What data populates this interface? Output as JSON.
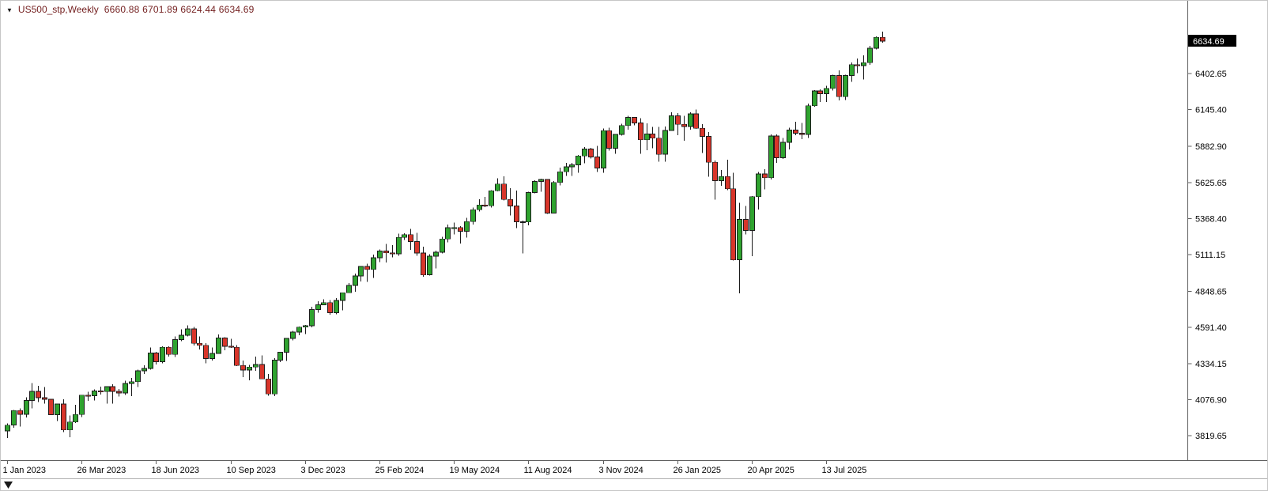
{
  "header": {
    "expand_icon": "▼",
    "symbol_timeframe": "US500_stp,Weekly",
    "ohlc": "6660.88 6701.89 6624.44 6634.69"
  },
  "price_scale": {
    "current_price_label": "6634.69",
    "labels": [
      "6402.65",
      "6145.40",
      "5882.90",
      "5625.65",
      "5368.40",
      "5111.15",
      "4848.65",
      "4591.40",
      "4334.15",
      "4076.90",
      "3819.65"
    ]
  },
  "time_scale": {
    "labels": [
      {
        "text": "1 Jan 2023",
        "week": 0
      },
      {
        "text": "26 Mar 2023",
        "week": 12
      },
      {
        "text": "18 Jun 2023",
        "week": 24
      },
      {
        "text": "10 Sep 2023",
        "week": 36
      },
      {
        "text": "3 Dec 2023",
        "week": 48
      },
      {
        "text": "25 Feb 2024",
        "week": 60
      },
      {
        "text": "19 May 2024",
        "week": 72
      },
      {
        "text": "11 Aug 2024",
        "week": 84
      },
      {
        "text": "3 Nov 2024",
        "week": 96
      },
      {
        "text": "26 Jan 2025",
        "week": 108
      },
      {
        "text": "20 Apr 2025",
        "week": 120
      },
      {
        "text": "13 Jul 2025",
        "week": 132
      }
    ]
  },
  "chart_data": {
    "type": "candlestick",
    "title": "US500_stp,Weekly",
    "symbol": "US500_stp",
    "timeframe": "Weekly",
    "grid": false,
    "legend_position": "none",
    "ylim": [
      3645,
      6922
    ],
    "x_unit": "week",
    "x_start_label": "1 Jan 2023",
    "current_bar": {
      "open": 6660.88,
      "high": 6701.89,
      "low": 6624.44,
      "close": 6634.69
    },
    "colors": {
      "up": "#2fa32f",
      "down": "#d8352a",
      "outline": "#1c1c1c",
      "background": "#ffffff",
      "axis_text": "#000000",
      "axis_line": "#5f5f5f",
      "title_text": "#731f1f",
      "badge_bg": "#000000",
      "badge_text": "#ffffff"
    },
    "candles": [
      [
        3853,
        3906,
        3802,
        3895
      ],
      [
        3895,
        4003,
        3877,
        3999
      ],
      [
        3999,
        4015,
        3885,
        3972
      ],
      [
        3972,
        4094,
        3949,
        4071
      ],
      [
        4071,
        4195,
        4015,
        4136
      ],
      [
        4136,
        4176,
        4060,
        4090
      ],
      [
        4090,
        4168,
        4047,
        4079
      ],
      [
        4079,
        4082,
        3969,
        3970
      ],
      [
        3970,
        4048,
        3925,
        4046
      ],
      [
        4046,
        4078,
        3846,
        3861
      ],
      [
        3861,
        3964,
        3808,
        3917
      ],
      [
        3917,
        4039,
        3909,
        3971
      ],
      [
        3971,
        4110,
        3951,
        4109
      ],
      [
        4109,
        4133,
        4069,
        4105
      ],
      [
        4105,
        4150,
        4072,
        4138
      ],
      [
        4138,
        4169,
        4113,
        4134
      ],
      [
        4134,
        4170,
        4049,
        4169
      ],
      [
        4169,
        4186,
        4048,
        4136
      ],
      [
        4136,
        4154,
        4098,
        4124
      ],
      [
        4124,
        4212,
        4110,
        4192
      ],
      [
        4192,
        4231,
        4103,
        4205
      ],
      [
        4205,
        4290,
        4166,
        4282
      ],
      [
        4282,
        4322,
        4261,
        4299
      ],
      [
        4299,
        4448,
        4292,
        4410
      ],
      [
        4410,
        4418,
        4328,
        4348
      ],
      [
        4348,
        4458,
        4336,
        4450
      ],
      [
        4450,
        4456,
        4385,
        4399
      ],
      [
        4399,
        4527,
        4380,
        4505
      ],
      [
        4505,
        4578,
        4495,
        4536
      ],
      [
        4536,
        4607,
        4528,
        4582
      ],
      [
        4582,
        4594,
        4464,
        4478
      ],
      [
        4478,
        4527,
        4436,
        4464
      ],
      [
        4464,
        4479,
        4335,
        4370
      ],
      [
        4370,
        4449,
        4356,
        4406
      ],
      [
        4406,
        4542,
        4403,
        4516
      ],
      [
        4516,
        4521,
        4430,
        4457
      ],
      [
        4457,
        4511,
        4447,
        4450
      ],
      [
        4450,
        4467,
        4316,
        4320
      ],
      [
        4320,
        4357,
        4238,
        4288
      ],
      [
        4288,
        4324,
        4216,
        4309
      ],
      [
        4309,
        4385,
        4283,
        4328
      ],
      [
        4328,
        4393,
        4223,
        4224
      ],
      [
        4224,
        4259,
        4104,
        4117
      ],
      [
        4117,
        4373,
        4103,
        4358
      ],
      [
        4358,
        4418,
        4343,
        4415
      ],
      [
        4415,
        4516,
        4353,
        4514
      ],
      [
        4514,
        4568,
        4499,
        4559
      ],
      [
        4559,
        4599,
        4537,
        4594
      ],
      [
        4594,
        4609,
        4546,
        4604
      ],
      [
        4604,
        4738,
        4593,
        4719
      ],
      [
        4719,
        4778,
        4697,
        4754
      ],
      [
        4754,
        4793,
        4751,
        4769
      ],
      [
        4769,
        4788,
        4682,
        4697
      ],
      [
        4697,
        4802,
        4687,
        4784
      ],
      [
        4784,
        4842,
        4714,
        4839
      ],
      [
        4839,
        4908,
        4837,
        4891
      ],
      [
        4891,
        4975,
        4845,
        4959
      ],
      [
        4959,
        5030,
        4920,
        5027
      ],
      [
        5027,
        5048,
        4918,
        5006
      ],
      [
        5006,
        5111,
        4946,
        5089
      ],
      [
        5089,
        5149,
        5057,
        5137
      ],
      [
        5137,
        5189,
        5056,
        5124
      ],
      [
        5124,
        5180,
        5092,
        5117
      ],
      [
        5117,
        5261,
        5104,
        5234
      ],
      [
        5234,
        5264,
        5216,
        5254
      ],
      [
        5254,
        5294,
        5146,
        5204
      ],
      [
        5204,
        5266,
        5103,
        5123
      ],
      [
        5123,
        5168,
        4953,
        4967
      ],
      [
        4967,
        5114,
        4963,
        5100
      ],
      [
        5100,
        5139,
        5013,
        5128
      ],
      [
        5128,
        5239,
        5120,
        5223
      ],
      [
        5223,
        5325,
        5200,
        5303
      ],
      [
        5303,
        5341,
        5256,
        5305
      ],
      [
        5305,
        5315,
        5191,
        5278
      ],
      [
        5278,
        5375,
        5234,
        5347
      ],
      [
        5347,
        5447,
        5327,
        5432
      ],
      [
        5432,
        5505,
        5420,
        5465
      ],
      [
        5465,
        5523,
        5451,
        5460
      ],
      [
        5460,
        5570,
        5446,
        5567
      ],
      [
        5567,
        5656,
        5562,
        5615
      ],
      [
        5615,
        5670,
        5497,
        5505
      ],
      [
        5505,
        5585,
        5390,
        5459
      ],
      [
        5459,
        5567,
        5300,
        5346
      ],
      [
        5346,
        5355,
        5119,
        5344
      ],
      [
        5344,
        5560,
        5319,
        5554
      ],
      [
        5554,
        5642,
        5550,
        5634
      ],
      [
        5634,
        5652,
        5560,
        5648
      ],
      [
        5648,
        5651,
        5402,
        5408
      ],
      [
        5408,
        5636,
        5404,
        5626
      ],
      [
        5626,
        5733,
        5604,
        5702
      ],
      [
        5702,
        5767,
        5674,
        5738
      ],
      [
        5738,
        5765,
        5674,
        5751
      ],
      [
        5751,
        5822,
        5696,
        5815
      ],
      [
        5815,
        5878,
        5762,
        5865
      ],
      [
        5865,
        5872,
        5797,
        5808
      ],
      [
        5808,
        5887,
        5702,
        5729
      ],
      [
        5729,
        6012,
        5696,
        5996
      ],
      [
        5996,
        6017,
        5853,
        5871
      ],
      [
        5871,
        5971,
        5832,
        5969
      ],
      [
        5969,
        6044,
        5961,
        6032
      ],
      [
        6032,
        6100,
        6003,
        6090
      ],
      [
        6090,
        6092,
        6033,
        6051
      ],
      [
        6051,
        6085,
        5832,
        5931
      ],
      [
        5931,
        6049,
        5856,
        5971
      ],
      [
        5971,
        6021,
        5869,
        5942
      ],
      [
        5942,
        6021,
        5773,
        5827
      ],
      [
        5827,
        6025,
        5775,
        5997
      ],
      [
        5997,
        6128,
        5995,
        6101
      ],
      [
        6101,
        6121,
        5962,
        6041
      ],
      [
        6041,
        6102,
        5923,
        6026
      ],
      [
        6026,
        6127,
        6003,
        6115
      ],
      [
        6115,
        6147,
        6008,
        6013
      ],
      [
        6013,
        6043,
        5837,
        5955
      ],
      [
        5955,
        5986,
        5666,
        5770
      ],
      [
        5770,
        5783,
        5504,
        5639
      ],
      [
        5639,
        5715,
        5603,
        5668
      ],
      [
        5668,
        5787,
        5572,
        5581
      ],
      [
        5581,
        5695,
        5069,
        5074
      ],
      [
        5074,
        5481,
        4835,
        5363
      ],
      [
        5363,
        5459,
        5255,
        5283
      ],
      [
        5283,
        5528,
        5101,
        5525
      ],
      [
        5525,
        5700,
        5433,
        5687
      ],
      [
        5687,
        5720,
        5578,
        5660
      ],
      [
        5660,
        5968,
        5647,
        5958
      ],
      [
        5958,
        5969,
        5767,
        5803
      ],
      [
        5803,
        5943,
        5795,
        5912
      ],
      [
        5912,
        6016,
        5861,
        6000
      ],
      [
        6000,
        6059,
        5963,
        5977
      ],
      [
        5977,
        6050,
        5936,
        5968
      ],
      [
        5968,
        6188,
        5943,
        6173
      ],
      [
        6173,
        6284,
        6165,
        6279
      ],
      [
        6279,
        6290,
        6201,
        6260
      ],
      [
        6260,
        6315,
        6201,
        6297
      ],
      [
        6297,
        6395,
        6281,
        6389
      ],
      [
        6389,
        6427,
        6211,
        6238
      ],
      [
        6238,
        6395,
        6213,
        6389
      ],
      [
        6389,
        6481,
        6343,
        6467
      ],
      [
        6467,
        6509,
        6406,
        6460
      ],
      [
        6460,
        6533,
        6361,
        6481
      ],
      [
        6481,
        6600,
        6466,
        6584
      ],
      [
        6584,
        6669,
        6575,
        6660.88
      ],
      [
        6660.88,
        6701.89,
        6624.44,
        6634.69
      ]
    ]
  }
}
